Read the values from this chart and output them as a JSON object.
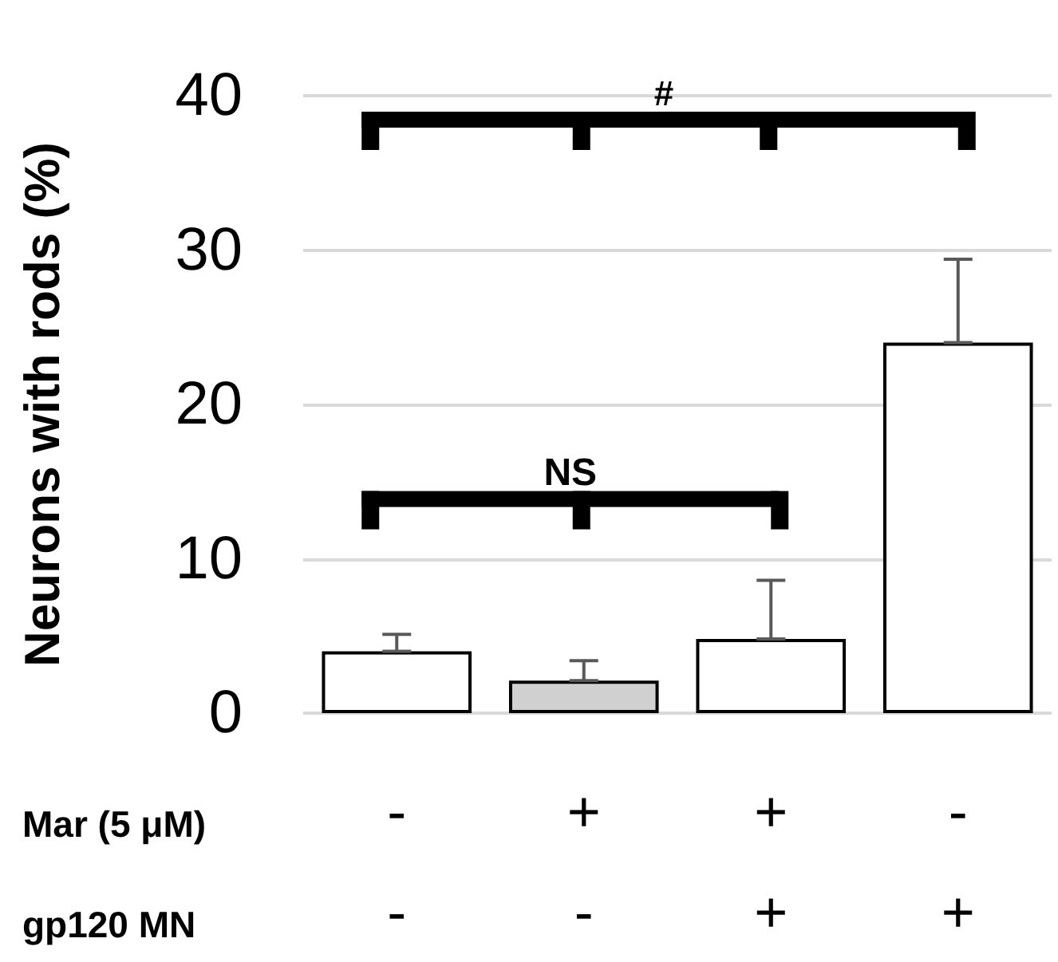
{
  "chart_data": {
    "type": "bar",
    "ylabel": "Neurons with rods (%)",
    "categories": [
      "-\n-",
      "+\n-",
      "+\n+",
      "-\n+"
    ],
    "values": [
      4.0,
      2.1,
      4.8,
      24.0
    ],
    "colors": [
      "#ffffff",
      "#d0d0d0",
      "#ffffff",
      "#ffffff"
    ],
    "errors": [
      [
        4.0,
        5.1
      ],
      [
        2.1,
        3.4
      ],
      [
        4.8,
        8.6
      ],
      [
        24.0,
        29.4
      ]
    ],
    "ylim": [
      0,
      40
    ],
    "yticks": [
      0,
      10,
      20,
      30,
      40
    ],
    "grid": "y",
    "annotations": [
      "#",
      "NS",
      "Mar (5 μM)",
      "gp120 MN"
    ]
  }
}
